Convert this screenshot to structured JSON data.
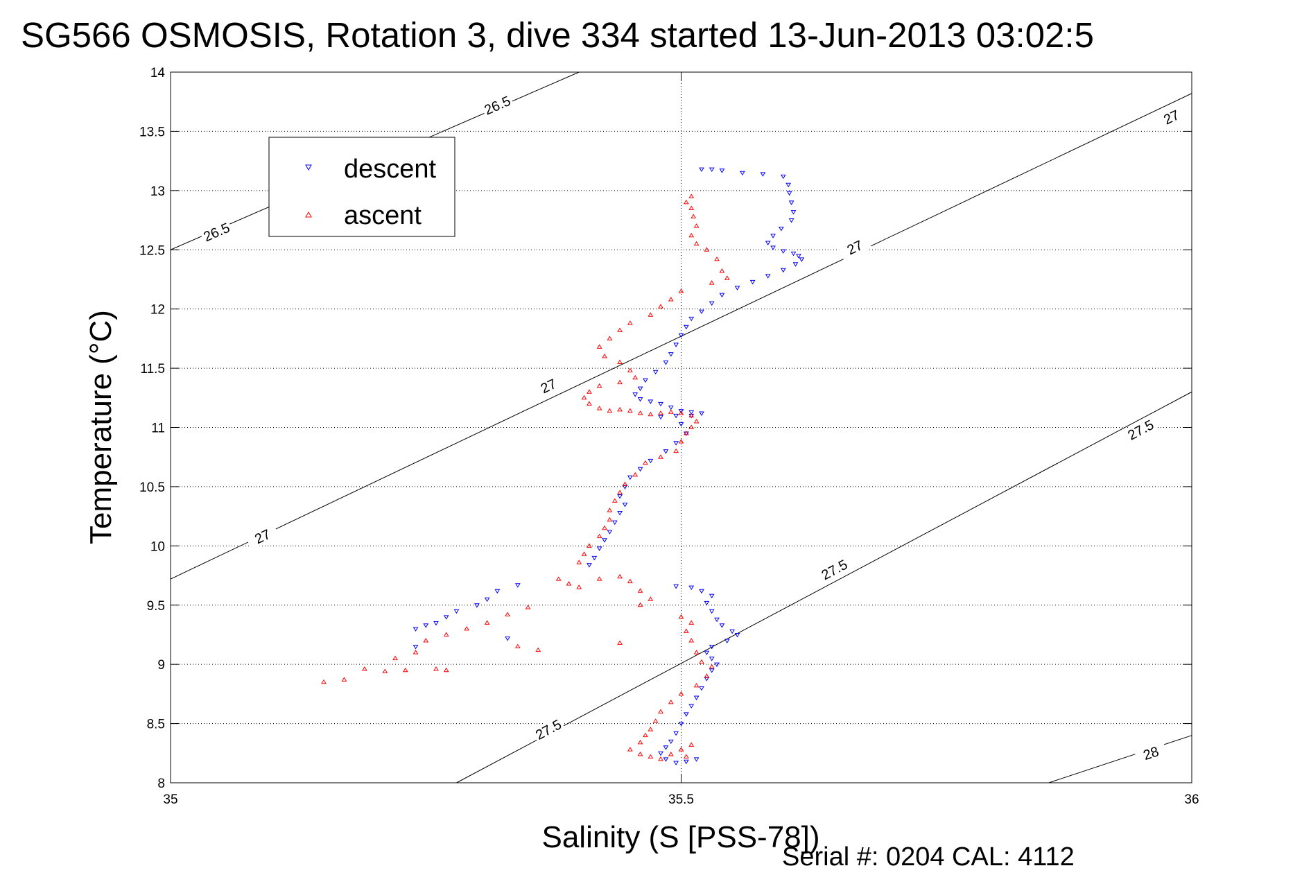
{
  "chart_data": {
    "type": "scatter",
    "title": "SG566 OSMOSIS, Rotation 3, dive 334 started 13-Jun-2013 03:02:5",
    "xlabel": "Salinity (S [PSS-78])",
    "ylabel": "Temperature (°C)",
    "xlim": [
      35,
      36
    ],
    "ylim": [
      8,
      14
    ],
    "xticks": [
      "35",
      "35.5",
      "36"
    ],
    "yticks": [
      "8",
      "8.5",
      "9",
      "9.5",
      "10",
      "10.5",
      "11",
      "11.5",
      "12",
      "12.5",
      "13",
      "13.5",
      "14"
    ],
    "grid": true,
    "legend": "top-left",
    "footer": "Serial #: 0204  CAL: 4112",
    "series": [
      {
        "name": "descent",
        "color": "#0000ff",
        "marker": "triangle-down",
        "points": [
          [
            35.52,
            13.18
          ],
          [
            35.53,
            13.18
          ],
          [
            35.54,
            13.17
          ],
          [
            35.56,
            13.15
          ],
          [
            35.58,
            13.14
          ],
          [
            35.6,
            13.12
          ],
          [
            35.605,
            13.05
          ],
          [
            35.606,
            12.98
          ],
          [
            35.608,
            12.9
          ],
          [
            35.61,
            12.82
          ],
          [
            35.608,
            12.75
          ],
          [
            35.598,
            12.68
          ],
          [
            35.59,
            12.62
          ],
          [
            35.585,
            12.56
          ],
          [
            35.59,
            12.52
          ],
          [
            35.6,
            12.49
          ],
          [
            35.61,
            12.47
          ],
          [
            35.615,
            12.45
          ],
          [
            35.618,
            12.42
          ],
          [
            35.612,
            12.38
          ],
          [
            35.6,
            12.33
          ],
          [
            35.585,
            12.28
          ],
          [
            35.57,
            12.23
          ],
          [
            35.555,
            12.18
          ],
          [
            35.54,
            12.12
          ],
          [
            35.53,
            12.05
          ],
          [
            35.52,
            11.98
          ],
          [
            35.51,
            11.92
          ],
          [
            35.505,
            11.85
          ],
          [
            35.5,
            11.78
          ],
          [
            35.495,
            11.7
          ],
          [
            35.49,
            11.62
          ],
          [
            35.485,
            11.55
          ],
          [
            35.475,
            11.47
          ],
          [
            35.465,
            11.4
          ],
          [
            35.46,
            11.33
          ],
          [
            35.455,
            11.28
          ],
          [
            35.46,
            11.24
          ],
          [
            35.47,
            11.22
          ],
          [
            35.48,
            11.2
          ],
          [
            35.49,
            11.17
          ],
          [
            35.5,
            11.14
          ],
          [
            35.51,
            11.13
          ],
          [
            35.52,
            11.12
          ],
          [
            35.51,
            11.1
          ],
          [
            35.495,
            11.1
          ],
          [
            35.48,
            11.09
          ],
          [
            35.5,
            11.03
          ],
          [
            35.505,
            10.95
          ],
          [
            35.495,
            10.87
          ],
          [
            35.485,
            10.8
          ],
          [
            35.47,
            10.72
          ],
          [
            35.46,
            10.65
          ],
          [
            35.45,
            10.58
          ],
          [
            35.445,
            10.5
          ],
          [
            35.44,
            10.42
          ],
          [
            35.445,
            10.35
          ],
          [
            35.44,
            10.28
          ],
          [
            35.435,
            10.2
          ],
          [
            35.43,
            10.12
          ],
          [
            35.425,
            10.05
          ],
          [
            35.42,
            9.98
          ],
          [
            35.415,
            9.9
          ],
          [
            35.41,
            9.84
          ],
          [
            35.34,
            9.67
          ],
          [
            35.32,
            9.62
          ],
          [
            35.31,
            9.55
          ],
          [
            35.3,
            9.5
          ],
          [
            35.28,
            9.45
          ],
          [
            35.27,
            9.4
          ],
          [
            35.26,
            9.35
          ],
          [
            35.25,
            9.33
          ],
          [
            35.24,
            9.3
          ],
          [
            35.33,
            9.22
          ],
          [
            35.24,
            9.15
          ],
          [
            35.495,
            9.66
          ],
          [
            35.51,
            9.65
          ],
          [
            35.52,
            9.62
          ],
          [
            35.53,
            9.58
          ],
          [
            35.525,
            9.52
          ],
          [
            35.53,
            9.45
          ],
          [
            35.535,
            9.38
          ],
          [
            35.54,
            9.33
          ],
          [
            35.55,
            9.28
          ],
          [
            35.555,
            9.25
          ],
          [
            35.545,
            9.2
          ],
          [
            35.53,
            9.15
          ],
          [
            35.525,
            9.1
          ],
          [
            35.53,
            9.05
          ],
          [
            35.535,
            9.0
          ],
          [
            35.53,
            8.95
          ],
          [
            35.525,
            8.88
          ],
          [
            35.52,
            8.8
          ],
          [
            35.515,
            8.72
          ],
          [
            35.51,
            8.65
          ],
          [
            35.505,
            8.58
          ],
          [
            35.5,
            8.5
          ],
          [
            35.495,
            8.42
          ],
          [
            35.49,
            8.35
          ],
          [
            35.485,
            8.3
          ],
          [
            35.48,
            8.25
          ],
          [
            35.485,
            8.2
          ],
          [
            35.495,
            8.17
          ],
          [
            35.505,
            8.18
          ],
          [
            35.515,
            8.2
          ]
        ]
      },
      {
        "name": "ascent",
        "color": "#ff0000",
        "marker": "triangle-up",
        "points": [
          [
            35.51,
            12.95
          ],
          [
            35.505,
            12.9
          ],
          [
            35.51,
            12.85
          ],
          [
            35.512,
            12.78
          ],
          [
            35.515,
            12.7
          ],
          [
            35.51,
            12.62
          ],
          [
            35.515,
            12.55
          ],
          [
            35.525,
            12.5
          ],
          [
            35.535,
            12.42
          ],
          [
            35.54,
            12.32
          ],
          [
            35.545,
            12.26
          ],
          [
            35.53,
            12.22
          ],
          [
            35.5,
            12.15
          ],
          [
            35.49,
            12.08
          ],
          [
            35.48,
            12.02
          ],
          [
            35.47,
            11.95
          ],
          [
            35.45,
            11.88
          ],
          [
            35.44,
            11.82
          ],
          [
            35.43,
            11.75
          ],
          [
            35.42,
            11.68
          ],
          [
            35.425,
            11.6
          ],
          [
            35.44,
            11.55
          ],
          [
            35.45,
            11.48
          ],
          [
            35.455,
            11.42
          ],
          [
            35.44,
            11.38
          ],
          [
            35.42,
            11.35
          ],
          [
            35.41,
            11.3
          ],
          [
            35.405,
            11.25
          ],
          [
            35.41,
            11.2
          ],
          [
            35.42,
            11.16
          ],
          [
            35.43,
            11.14
          ],
          [
            35.44,
            11.15
          ],
          [
            35.45,
            11.14
          ],
          [
            35.46,
            11.12
          ],
          [
            35.47,
            11.11
          ],
          [
            35.48,
            11.12
          ],
          [
            35.49,
            11.13
          ],
          [
            35.5,
            11.12
          ],
          [
            35.51,
            11.1
          ],
          [
            35.515,
            11.05
          ],
          [
            35.51,
            11.0
          ],
          [
            35.505,
            10.95
          ],
          [
            35.5,
            10.88
          ],
          [
            35.495,
            10.8
          ],
          [
            35.48,
            10.75
          ],
          [
            35.465,
            10.7
          ],
          [
            35.455,
            10.6
          ],
          [
            35.445,
            10.52
          ],
          [
            35.44,
            10.45
          ],
          [
            35.435,
            10.38
          ],
          [
            35.43,
            10.3
          ],
          [
            35.43,
            10.22
          ],
          [
            35.425,
            10.15
          ],
          [
            35.42,
            10.08
          ],
          [
            35.41,
            10.0
          ],
          [
            35.405,
            9.93
          ],
          [
            35.4,
            9.86
          ],
          [
            35.38,
            9.72
          ],
          [
            35.39,
            9.68
          ],
          [
            35.4,
            9.65
          ],
          [
            35.42,
            9.72
          ],
          [
            35.44,
            9.74
          ],
          [
            35.45,
            9.7
          ],
          [
            35.46,
            9.62
          ],
          [
            35.47,
            9.55
          ],
          [
            35.46,
            9.5
          ],
          [
            35.35,
            9.48
          ],
          [
            35.33,
            9.42
          ],
          [
            35.31,
            9.35
          ],
          [
            35.29,
            9.3
          ],
          [
            35.27,
            9.25
          ],
          [
            35.25,
            9.2
          ],
          [
            35.24,
            9.1
          ],
          [
            35.22,
            9.05
          ],
          [
            35.19,
            8.96
          ],
          [
            35.21,
            8.94
          ],
          [
            35.23,
            8.95
          ],
          [
            35.26,
            8.96
          ],
          [
            35.27,
            8.95
          ],
          [
            35.17,
            8.87
          ],
          [
            35.15,
            8.85
          ],
          [
            35.34,
            9.15
          ],
          [
            35.36,
            9.12
          ],
          [
            35.44,
            9.18
          ],
          [
            35.5,
            9.4
          ],
          [
            35.51,
            9.35
          ],
          [
            35.505,
            9.28
          ],
          [
            35.51,
            9.2
          ],
          [
            35.515,
            9.1
          ],
          [
            35.52,
            9.02
          ],
          [
            35.53,
            8.98
          ],
          [
            35.525,
            8.9
          ],
          [
            35.515,
            8.82
          ],
          [
            35.5,
            8.75
          ],
          [
            35.49,
            8.68
          ],
          [
            35.48,
            8.6
          ],
          [
            35.475,
            8.52
          ],
          [
            35.47,
            8.45
          ],
          [
            35.465,
            8.4
          ],
          [
            35.46,
            8.34
          ],
          [
            35.45,
            8.28
          ],
          [
            35.46,
            8.24
          ],
          [
            35.47,
            8.22
          ],
          [
            35.48,
            8.2
          ],
          [
            35.49,
            8.24
          ],
          [
            35.5,
            8.28
          ],
          [
            35.51,
            8.32
          ],
          [
            35.505,
            8.22
          ]
        ]
      }
    ],
    "isopycnals": [
      {
        "label": "26.5",
        "line": [
          [
            35.0,
            12.5
          ],
          [
            35.4,
            14.0
          ]
        ],
        "labels_at": [
          [
            35.045,
            12.65
          ],
          [
            35.32,
            13.72
          ]
        ]
      },
      {
        "label": "27",
        "line": [
          [
            35.0,
            9.72
          ],
          [
            36.0,
            13.82
          ]
        ],
        "labels_at": [
          [
            35.09,
            10.08
          ],
          [
            35.37,
            11.35
          ],
          [
            35.67,
            12.52
          ],
          [
            35.98,
            13.62
          ]
        ]
      },
      {
        "label": "27.5",
        "line": [
          [
            35.28,
            8.0
          ],
          [
            36.0,
            11.3
          ]
        ],
        "labels_at": [
          [
            35.37,
            8.45
          ],
          [
            35.65,
            9.8
          ],
          [
            35.95,
            10.98
          ]
        ]
      },
      {
        "label": "28",
        "line": [
          [
            35.86,
            8.0
          ],
          [
            36.0,
            8.4
          ]
        ],
        "labels_at": [
          [
            35.96,
            8.25
          ]
        ]
      }
    ]
  }
}
